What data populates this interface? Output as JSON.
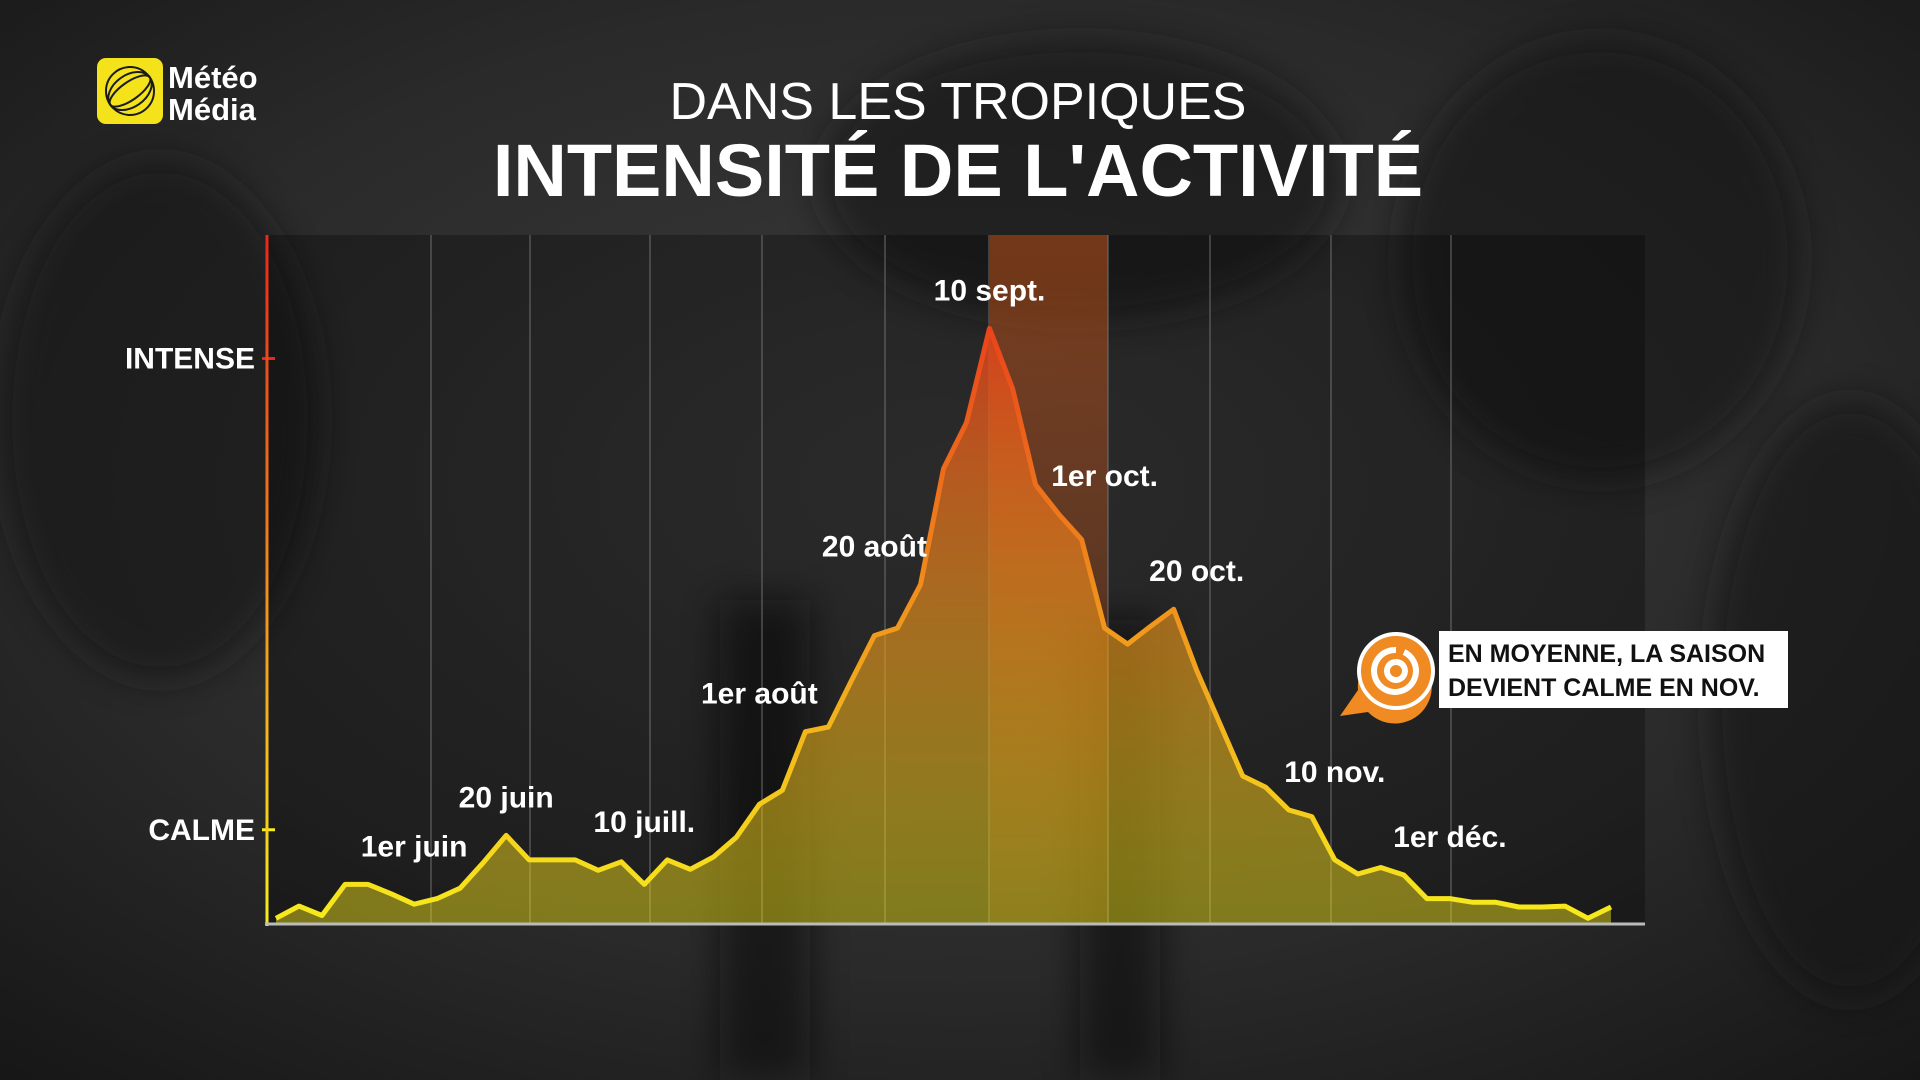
{
  "logo_text": [
    "Météo",
    "Média"
  ],
  "callout": [
    "EN MOYENNE, LA SAISON",
    "DEVIENT CALME EN NOV."
  ],
  "chart_data": {
    "type": "line",
    "subtitle": "DANS LES TROPIQUES",
    "title": "INTENSITÉ DE L'ACTIVITÉ",
    "categories": [
      null,
      null,
      null,
      null,
      null,
      null,
      "1er juin",
      null,
      null,
      null,
      "20 juin",
      null,
      null,
      null,
      null,
      null,
      "10 juill.",
      null,
      null,
      null,
      null,
      "1er août",
      null,
      null,
      null,
      null,
      "20 août",
      null,
      null,
      null,
      null,
      "10 sept.",
      null,
      null,
      null,
      null,
      "1er oct.",
      null,
      null,
      null,
      "20 oct.",
      null,
      null,
      null,
      null,
      null,
      "10 nov.",
      null,
      null,
      null,
      null,
      "1er déc.",
      null,
      null,
      null,
      null,
      null,
      null,
      null
    ],
    "values": [
      0.06,
      0.19,
      0.09,
      0.42,
      0.42,
      0.32,
      0.21,
      0.27,
      0.38,
      0.65,
      0.94,
      0.68,
      0.68,
      0.68,
      0.57,
      0.66,
      0.42,
      0.68,
      0.58,
      0.71,
      0.92,
      1.27,
      1.42,
      2.04,
      2.09,
      2.58,
      3.06,
      3.14,
      3.6,
      4.83,
      5.32,
      6.32,
      5.68,
      4.66,
      4.35,
      4.08,
      3.14,
      2.97,
      3.16,
      3.34,
      2.69,
      2.13,
      1.57,
      1.45,
      1.21,
      1.14,
      0.68,
      0.53,
      0.6,
      0.52,
      0.27,
      0.27,
      0.23,
      0.23,
      0.18,
      0.18,
      0.19,
      0.06,
      0.18
    ],
    "colors": [
      "#f7ec1c",
      "#e8291b"
    ],
    "ylim": [
      0,
      7.3
    ],
    "yticks": [
      {
        "value": 1,
        "label": "CALME"
      },
      {
        "value": 6,
        "label": "INTENSE"
      }
    ]
  }
}
